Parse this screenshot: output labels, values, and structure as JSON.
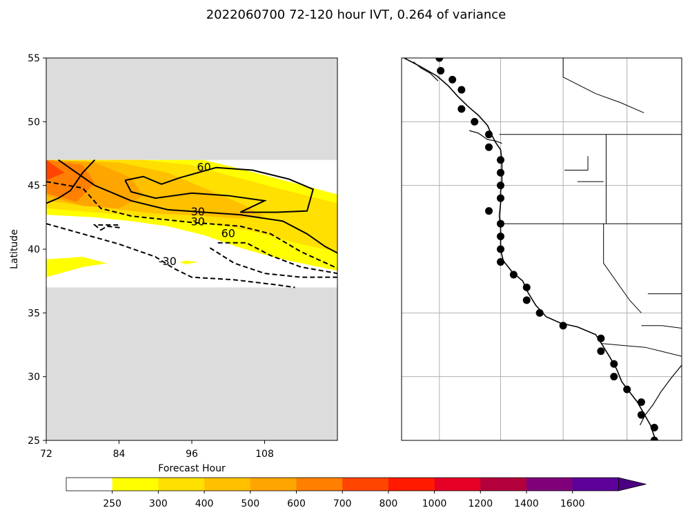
{
  "title": "2022060700 72-120 hour IVT, 0.264 of variance",
  "chart_data": [
    {
      "type": "contour",
      "panel": "left",
      "xlabel": "Forecast Hour",
      "ylabel": "Latitude",
      "xlim": [
        72,
        120
      ],
      "ylim": [
        25,
        55
      ],
      "xticks": [
        "72",
        "84",
        "96",
        "108"
      ],
      "yticks": [
        "25",
        "30",
        "35",
        "40",
        "45",
        "50",
        "55"
      ],
      "no_data_color": "#dcdcdc",
      "data_lat_range": [
        37,
        47
      ],
      "fill_regions": [
        {
          "level": "250-300",
          "color": "#ffff00",
          "points": [
            [
              72,
              47
            ],
            [
              90,
              47
            ],
            [
              98,
              47
            ],
            [
              104,
              46.3
            ],
            [
              112,
              45.3
            ],
            [
              120,
              44.3
            ],
            [
              120,
              38.3
            ],
            [
              116,
              38.7
            ],
            [
              110,
              39.3
            ],
            [
              104,
              40.1
            ],
            [
              98,
              41.1
            ],
            [
              92,
              41.8
            ],
            [
              86,
              42.2
            ],
            [
              80,
              42.5
            ],
            [
              72,
              42.7
            ]
          ]
        },
        {
          "level": "250-300",
          "color": "#ffff00",
          "points": [
            [
              72,
              39.2
            ],
            [
              78,
              39.4
            ],
            [
              82,
              38.9
            ],
            [
              78,
              38.6
            ],
            [
              72,
              37.8
            ]
          ]
        },
        {
          "level": "250-300",
          "color": "#ffff00",
          "points": [
            [
              95,
              39.1
            ],
            [
              97,
              39.0
            ],
            [
              95,
              38.8
            ],
            [
              94,
              39.0
            ]
          ]
        },
        {
          "level": "300-400",
          "color": "#ffe000",
          "points": [
            [
              72,
              47
            ],
            [
              88,
              47
            ],
            [
              96,
              46.6
            ],
            [
              102,
              45.8
            ],
            [
              110,
              44.8
            ],
            [
              120,
              43.6
            ],
            [
              120,
              39.8
            ],
            [
              114,
              40.4
            ],
            [
              106,
              41.4
            ],
            [
              98,
              42.1
            ],
            [
              90,
              42.5
            ],
            [
              82,
              42.8
            ],
            [
              72,
              43.2
            ]
          ]
        },
        {
          "level": "400-500",
          "color": "#ffc000",
          "points": [
            [
              72,
              47
            ],
            [
              84,
              46.8
            ],
            [
              92,
              46.0
            ],
            [
              98,
              44.8
            ],
            [
              104,
              43.6
            ],
            [
              108,
              42.6
            ],
            [
              104,
              42.4
            ],
            [
              98,
              42.6
            ],
            [
              90,
              42.8
            ],
            [
              82,
              43.2
            ],
            [
              72,
              43.8
            ]
          ]
        },
        {
          "level": "500-600",
          "color": "#ffa500",
          "points": [
            [
              72,
              47
            ],
            [
              80,
              46.8
            ],
            [
              86,
              45.6
            ],
            [
              88,
              44.2
            ],
            [
              84,
              43.2
            ],
            [
              78,
              43.4
            ],
            [
              72,
              44.2
            ]
          ]
        },
        {
          "level": "600-700",
          "color": "#ff7f00",
          "points": [
            [
              72,
              47
            ],
            [
              78,
              46.6
            ],
            [
              80,
              45.2
            ],
            [
              77,
              43.7
            ],
            [
              72,
              44.4
            ]
          ]
        },
        {
          "level": "700-800",
          "color": "#ff4500",
          "points": [
            [
              72,
              47
            ],
            [
              75,
              46.0
            ],
            [
              72,
              45.4
            ]
          ]
        }
      ],
      "contours": [
        {
          "label": "60",
          "style": "solid",
          "points": [
            [
              120,
              39.7
            ],
            [
              118,
              40.2
            ],
            [
              115,
              41.2
            ],
            [
              111,
              42.2
            ],
            [
              104,
              42.7
            ],
            [
              98,
              42.9
            ],
            [
              92,
              43.1
            ],
            [
              86,
              43.8
            ],
            [
              80,
              45.0
            ],
            [
              77,
              46.0
            ],
            [
              74,
              47.0
            ]
          ]
        },
        {
          "label": "60",
          "style": "solid",
          "points": [
            [
              85,
              45.4
            ],
            [
              88,
              45.7
            ],
            [
              91,
              45.1
            ],
            [
              94,
              45.6
            ],
            [
              100,
              46.4
            ],
            [
              106,
              46.2
            ],
            [
              112,
              45.5
            ],
            [
              116,
              44.7
            ],
            [
              115,
              43.0
            ],
            [
              110,
              42.9
            ],
            [
              104,
              42.9
            ],
            [
              108,
              43.8
            ],
            [
              102,
              44.2
            ],
            [
              96,
              44.4
            ],
            [
              90,
              44.0
            ],
            [
              86,
              44.5
            ],
            [
              85,
              45.4
            ]
          ]
        },
        {
          "label": "30",
          "style": "solid",
          "points": [
            [
              80,
              47.0
            ],
            [
              78,
              46.0
            ],
            [
              76,
              44.6
            ],
            [
              74,
              44.0
            ],
            [
              72,
              43.6
            ]
          ]
        },
        {
          "label": "-30",
          "style": "dashed",
          "points": [
            [
              72,
              45.3
            ],
            [
              78,
              44.8
            ],
            [
              81,
              43.2
            ],
            [
              86,
              42.6
            ],
            [
              96,
              42.1
            ],
            [
              104,
              41.8
            ],
            [
              109,
              41.2
            ],
            [
              114,
              39.8
            ],
            [
              120,
              38.5
            ]
          ]
        },
        {
          "label": "-30",
          "style": "dashed",
          "points": [
            [
              72,
              42.0
            ],
            [
              78,
              41.2
            ],
            [
              84,
              40.4
            ],
            [
              90,
              39.4
            ],
            [
              93,
              38.5
            ],
            [
              96,
              37.8
            ],
            [
              103,
              37.6
            ],
            [
              110,
              37.2
            ],
            [
              113,
              37.0
            ]
          ]
        },
        {
          "label": "-60",
          "style": "dashed",
          "points": [
            [
              99,
              40.1
            ],
            [
              103,
              38.9
            ],
            [
              108,
              38.1
            ],
            [
              114,
              37.8
            ],
            [
              120,
              37.8
            ],
            [
              120,
              38.1
            ],
            [
              114,
              38.6
            ],
            [
              109,
              39.5
            ],
            [
              105,
              40.5
            ],
            [
              100,
              40.5
            ]
          ]
        },
        {
          "label": "-60",
          "style": "dashed",
          "points": [
            [
              81,
              41.5
            ],
            [
              82,
              41.8
            ],
            [
              84,
              41.7
            ],
            [
              84,
              41.9
            ],
            [
              80,
              41.9
            ],
            [
              81,
              41.5
            ]
          ]
        }
      ],
      "contour_labels": [
        {
          "text": "60",
          "x": 98,
          "y": 46.4
        },
        {
          "text": "30",
          "x": 97,
          "y": 42.9
        },
        {
          "text": "30",
          "x": 97,
          "y": 42.1
        },
        {
          "text": "-30",
          "x": 92,
          "y": 39.0
        },
        {
          "text": "60",
          "x": 102,
          "y": 41.2
        }
      ]
    },
    {
      "type": "map",
      "panel": "right",
      "description_markers": "station points along west coast",
      "points": [
        {
          "lat": 55.0,
          "lon": -132.6
        },
        {
          "lat": 54.0,
          "lon": -132.5
        },
        {
          "lat": 53.3,
          "lon": -131.6
        },
        {
          "lat": 52.5,
          "lon": -130.9
        },
        {
          "lat": 51.0,
          "lon": -130.9
        },
        {
          "lat": 50.0,
          "lon": -129.9
        },
        {
          "lat": 49.0,
          "lon": -128.8
        },
        {
          "lat": 48.0,
          "lon": -128.8
        },
        {
          "lat": 47.0,
          "lon": -127.9
        },
        {
          "lat": 46.0,
          "lon": -127.9
        },
        {
          "lat": 45.0,
          "lon": -127.9
        },
        {
          "lat": 44.0,
          "lon": -127.9
        },
        {
          "lat": 43.0,
          "lon": -128.8
        },
        {
          "lat": 42.0,
          "lon": -127.9
        },
        {
          "lat": 41.0,
          "lon": -127.9
        },
        {
          "lat": 40.0,
          "lon": -127.9
        },
        {
          "lat": 39.0,
          "lon": -127.9
        },
        {
          "lat": 38.0,
          "lon": -126.9
        },
        {
          "lat": 37.0,
          "lon": -125.9
        },
        {
          "lat": 36.0,
          "lon": -125.9
        },
        {
          "lat": 35.0,
          "lon": -124.9
        },
        {
          "lat": 34.0,
          "lon": -123.1
        },
        {
          "lat": 33.0,
          "lon": -120.2
        },
        {
          "lat": 32.0,
          "lon": -120.2
        },
        {
          "lat": 31.0,
          "lon": -119.2
        },
        {
          "lat": 30.0,
          "lon": -119.2
        },
        {
          "lat": 29.0,
          "lon": -118.2
        },
        {
          "lat": 28.0,
          "lon": -117.1
        },
        {
          "lat": 27.0,
          "lon": -117.1
        },
        {
          "lat": 26.0,
          "lon": -116.1
        },
        {
          "lat": 25.0,
          "lon": -116.1
        }
      ]
    },
    {
      "type": "colorbar",
      "ticks": [
        "250",
        "300",
        "400",
        "500",
        "600",
        "700",
        "800",
        "1000",
        "1200",
        "1400",
        "1600"
      ],
      "colors": [
        "#ffffff",
        "#ffff00",
        "#ffe000",
        "#ffc000",
        "#ffa500",
        "#ff7f00",
        "#ff4500",
        "#ff1a00",
        "#e60026",
        "#b3003c",
        "#80007a",
        "#5c0099",
        "#4b0082"
      ],
      "extend": "max"
    }
  ]
}
